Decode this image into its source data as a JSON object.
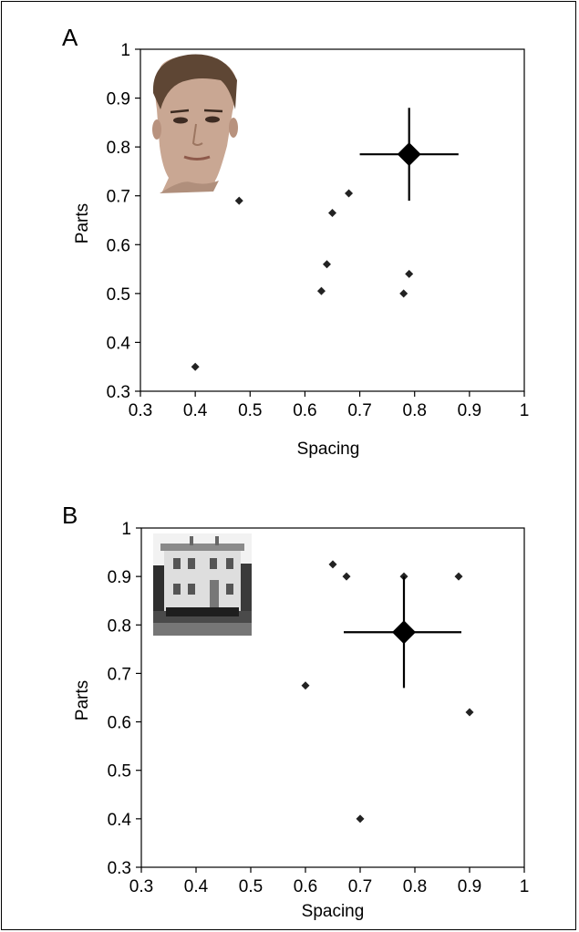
{
  "chart_data": [
    {
      "type": "scatter",
      "panel_label": "A",
      "xlabel": "Spacing",
      "ylabel": "Parts",
      "xlim": [
        0.3,
        1
      ],
      "ylim": [
        0.3,
        1
      ],
      "xticks": [
        "0.3",
        "0.4",
        "0.5",
        "0.6",
        "0.7",
        "0.8",
        "0.9",
        "1"
      ],
      "yticks": [
        "0.3",
        "0.4",
        "0.5",
        "0.6",
        "0.7",
        "0.8",
        "0.9",
        "1"
      ],
      "grid": false,
      "inset_image": "face-photo",
      "points": [
        {
          "x": 0.4,
          "y": 0.35
        },
        {
          "x": 0.48,
          "y": 0.69
        },
        {
          "x": 0.63,
          "y": 0.505
        },
        {
          "x": 0.64,
          "y": 0.56
        },
        {
          "x": 0.65,
          "y": 0.665
        },
        {
          "x": 0.68,
          "y": 0.705
        },
        {
          "x": 0.78,
          "y": 0.5
        },
        {
          "x": 0.79,
          "y": 0.54
        }
      ],
      "mean": {
        "x": 0.79,
        "y": 0.785,
        "x_err": [
          0.7,
          0.88
        ],
        "y_err": [
          0.69,
          0.88
        ]
      }
    },
    {
      "type": "scatter",
      "panel_label": "B",
      "xlabel": "Spacing",
      "ylabel": "Parts",
      "xlim": [
        0.3,
        1
      ],
      "ylim": [
        0.3,
        1
      ],
      "xticks": [
        "0.3",
        "0.4",
        "0.5",
        "0.6",
        "0.7",
        "0.8",
        "0.9",
        "1"
      ],
      "yticks": [
        "0.3",
        "0.4",
        "0.5",
        "0.6",
        "0.7",
        "0.8",
        "0.9",
        "1"
      ],
      "grid": false,
      "inset_image": "house-photo",
      "points": [
        {
          "x": 0.6,
          "y": 0.675
        },
        {
          "x": 0.65,
          "y": 0.925
        },
        {
          "x": 0.675,
          "y": 0.9
        },
        {
          "x": 0.7,
          "y": 0.4
        },
        {
          "x": 0.78,
          "y": 0.9
        },
        {
          "x": 0.88,
          "y": 0.9
        },
        {
          "x": 0.9,
          "y": 0.62
        }
      ],
      "mean": {
        "x": 0.78,
        "y": 0.785,
        "x_err": [
          0.67,
          0.885
        ],
        "y_err": [
          0.67,
          0.9
        ]
      }
    }
  ]
}
